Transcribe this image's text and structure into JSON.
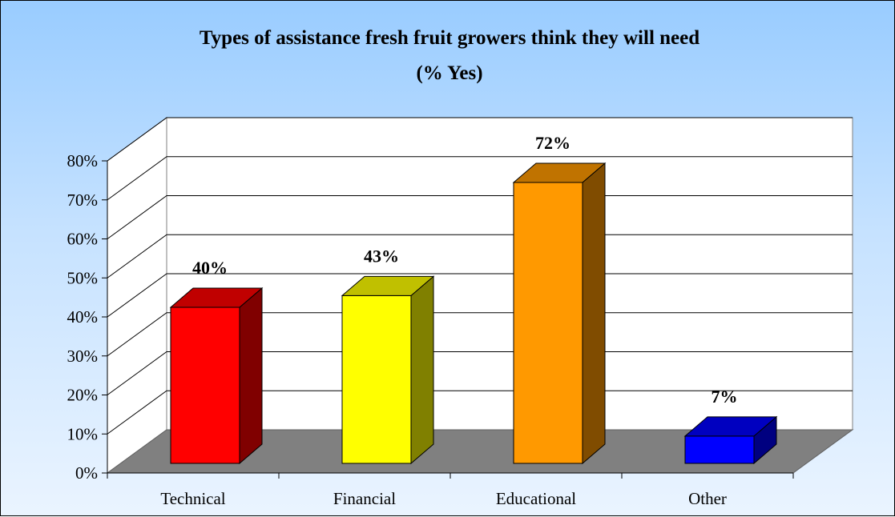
{
  "chart_data": {
    "type": "bar",
    "title": "Types of assistance fresh fruit growers think they will need",
    "subtitle": "(% Yes)",
    "categories": [
      "Technical",
      "Financial",
      "Educational",
      "Other"
    ],
    "values": [
      40,
      43,
      72,
      7
    ],
    "data_labels": [
      "40%",
      "43%",
      "72%",
      "7%"
    ],
    "yticks": [
      "0%",
      "10%",
      "20%",
      "30%",
      "40%",
      "50%",
      "60%",
      "70%",
      "80%"
    ],
    "ylim": [
      0,
      80
    ],
    "grid": true,
    "three_d": true,
    "colors": [
      "#ff0000",
      "#ffff00",
      "#ff9900",
      "#0000ff"
    ],
    "side_colors": [
      "#800000",
      "#808000",
      "#804c00",
      "#000080"
    ],
    "top_colors": [
      "#c00000",
      "#c0c000",
      "#c07300",
      "#0000c0"
    ],
    "floor_color": "#808080"
  }
}
